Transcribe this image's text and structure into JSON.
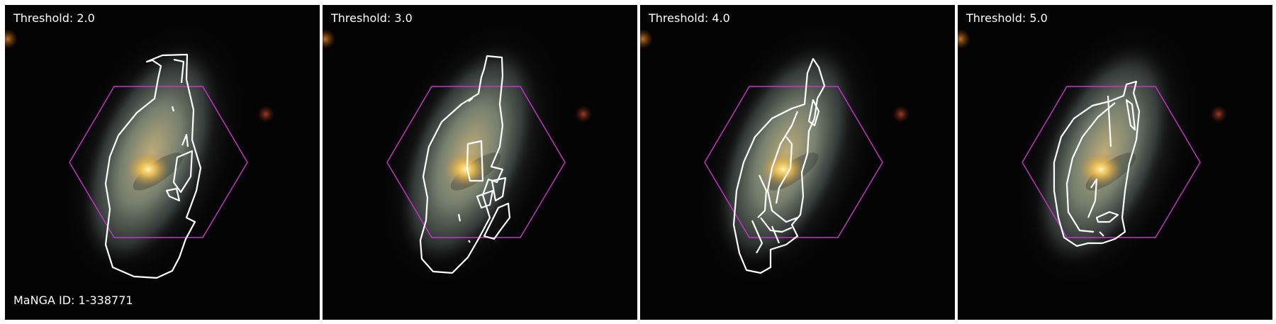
{
  "panels": [
    {
      "threshold_label": "Threshold: 2.0",
      "threshold": 2.0
    },
    {
      "threshold_label": "Threshold: 3.0",
      "threshold": 3.0
    },
    {
      "threshold_label": "Threshold: 4.0",
      "threshold": 4.0
    },
    {
      "threshold_label": "Threshold: 5.0",
      "threshold": 5.0
    }
  ],
  "manga_id_label": "MaNGA ID: 1-338771",
  "colors": {
    "hexagon": "#cc33cc",
    "contour": "#ffffff",
    "background": "#050404",
    "core": "#f4c04e"
  }
}
